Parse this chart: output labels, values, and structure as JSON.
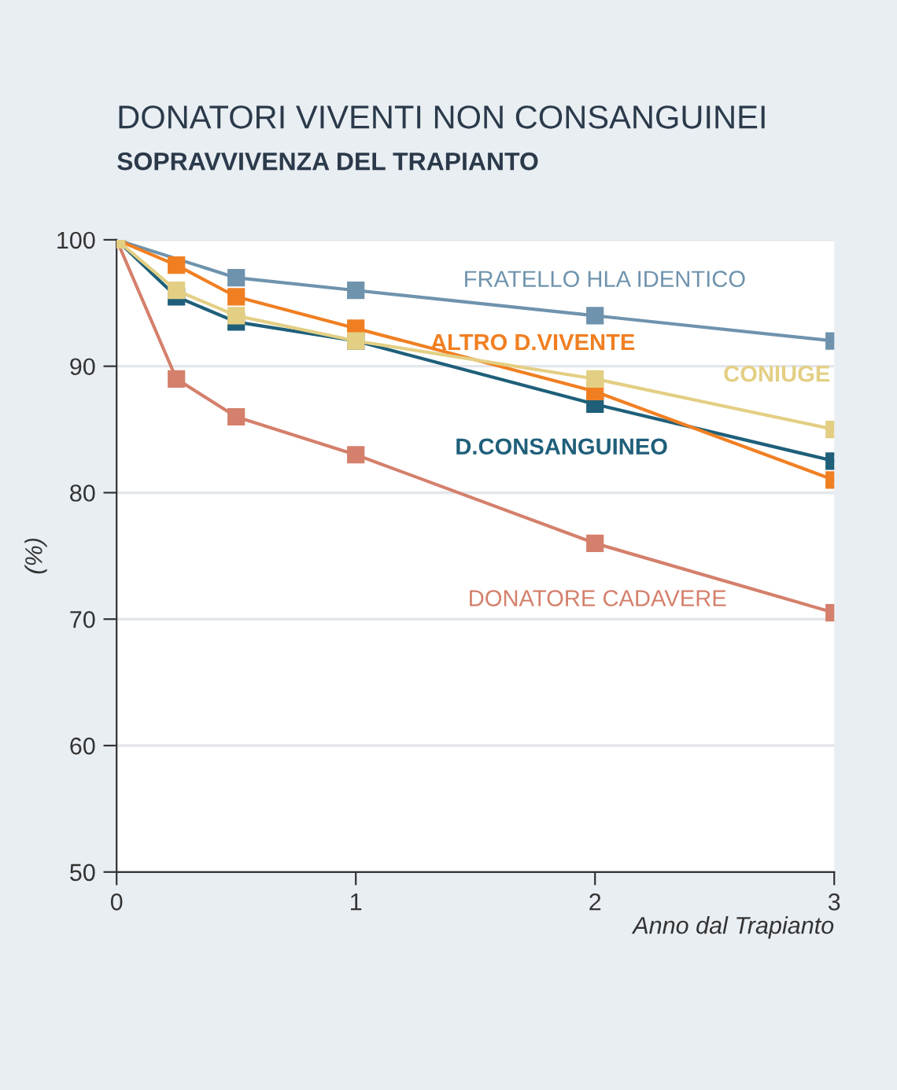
{
  "chart_data": {
    "type": "line",
    "title": "DONATORI VIVENTI NON CONSANGUINEI",
    "subtitle": "SOPRAVVIVENZA DEL TRAPIANTO",
    "xlabel": "Anno dal Trapianto",
    "ylabel": "(%)",
    "x": [
      0,
      0.25,
      0.5,
      1,
      2,
      3
    ],
    "xlim": [
      0,
      3
    ],
    "xticks": [
      0,
      1,
      2,
      3
    ],
    "ylim": [
      50,
      100
    ],
    "yticks": [
      100,
      90,
      80,
      70,
      60,
      50
    ],
    "grid": "y",
    "marker": "square",
    "legend": false,
    "series": [
      {
        "name": "FRATELLO HLA IDENTICO",
        "color": "#6f93ad",
        "values": [
          100,
          null,
          97,
          96,
          94,
          92
        ]
      },
      {
        "name": "ALTRO D.VIVENTE",
        "color": "#f07f22",
        "values": [
          100,
          98,
          95.5,
          93,
          88,
          81
        ]
      },
      {
        "name": "CONIUGE",
        "color": "#e3cf84",
        "values": [
          100,
          96,
          94,
          92,
          89,
          85
        ]
      },
      {
        "name": "D.CONSANGUINEO",
        "color": "#1f5f7a",
        "values": [
          100,
          95.5,
          93.5,
          92,
          87,
          82.5
        ]
      },
      {
        "name": "DONATORE CADAVERE",
        "color": "#d4806c",
        "values": [
          100,
          89,
          86,
          83,
          76,
          70.5
        ]
      }
    ]
  }
}
